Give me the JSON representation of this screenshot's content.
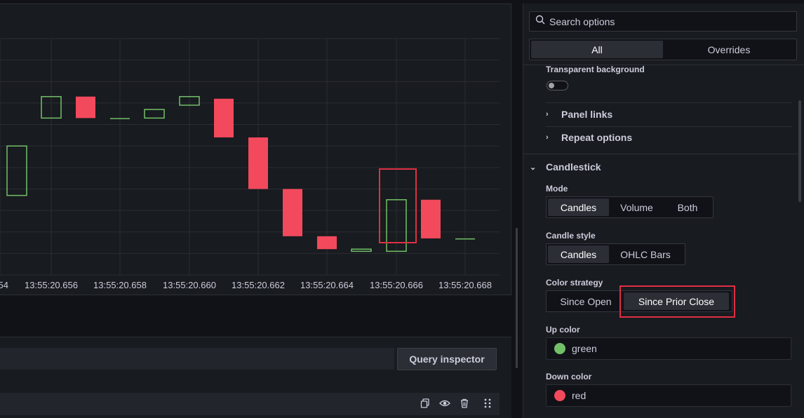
{
  "chart_data": {
    "type": "candlestick",
    "x_tick_labels": [
      "54",
      "13:55:20.656",
      "13:55:20.658",
      "13:55:20.660",
      "13:55:20.662",
      "13:55:20.664",
      "13:55:20.666",
      "13:55:20.668"
    ],
    "candles": [
      {
        "open": 5.0,
        "close": 2.7,
        "direction": "up"
      },
      {
        "open": 7.3,
        "close": 6.3,
        "direction": "up"
      },
      {
        "open": 6.3,
        "close": 7.3,
        "direction": "down"
      },
      {
        "open": 6.3,
        "close": 6.3,
        "direction": "up"
      },
      {
        "open": 6.3,
        "close": 6.7,
        "direction": "up"
      },
      {
        "open": 6.9,
        "close": 7.3,
        "direction": "up"
      },
      {
        "open": 7.2,
        "close": 5.4,
        "direction": "down"
      },
      {
        "open": 5.4,
        "close": 3.0,
        "direction": "down"
      },
      {
        "open": 3.0,
        "close": 0.8,
        "direction": "down"
      },
      {
        "open": 0.8,
        "close": 0.2,
        "direction": "down"
      },
      {
        "open": 0.2,
        "close": 0.1,
        "direction": "up"
      },
      {
        "open": 0.1,
        "close": 2.5,
        "direction": "up"
      },
      {
        "open": 2.5,
        "close": 0.7,
        "direction": "down"
      },
      {
        "open": 0.7,
        "close": 0.7,
        "direction": "up"
      }
    ],
    "up_color": "#73bf69",
    "down_color": "#f2495c",
    "grid": true
  },
  "query": {
    "inspector_label": "Query inspector"
  },
  "row_icons": [
    "copy-icon",
    "eye-icon",
    "trash-icon",
    "drag-handle-icon"
  ],
  "options": {
    "search_placeholder": "Search options",
    "tabs": {
      "all": "All",
      "overrides": "Overrides"
    },
    "transparent_background_label": "Transparent background",
    "panel_links_label": "Panel links",
    "repeat_options_label": "Repeat options",
    "candlestick_section_label": "Candlestick",
    "mode": {
      "label": "Mode",
      "options": [
        "Candles",
        "Volume",
        "Both"
      ],
      "selected": "Candles"
    },
    "candle_style": {
      "label": "Candle style",
      "options": [
        "Candles",
        "OHLC Bars"
      ],
      "selected": "Candles"
    },
    "color_strategy": {
      "label": "Color strategy",
      "options": [
        "Since Open",
        "Since Prior Close"
      ],
      "selected": "Since Prior Close"
    },
    "up_color": {
      "label": "Up color",
      "value": "green",
      "swatch": "#73bf69"
    },
    "down_color": {
      "label": "Down color",
      "value": "red",
      "swatch": "#f2495c"
    }
  },
  "colors": {
    "background": "#111217",
    "panel": "#181b1f",
    "highlight": "#e02f44"
  }
}
